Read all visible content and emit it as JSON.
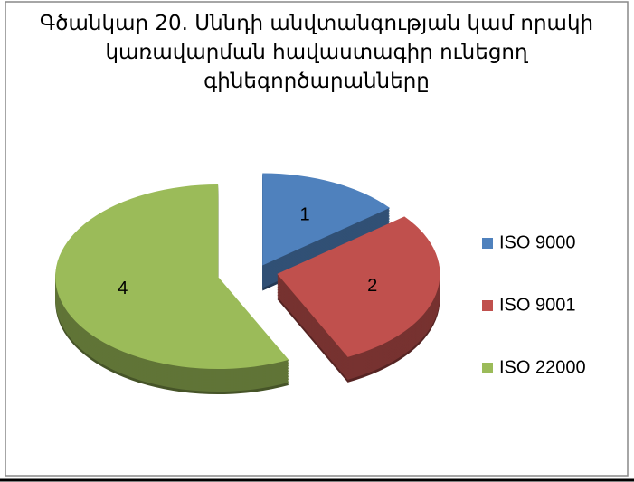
{
  "chart_data": {
    "type": "pie3d",
    "title": "Գծանկար 20. Սննդի անվտանգության կամ որակի կառավարման հավաստագիր ունեցող գինեգործարանները",
    "categories": [
      "ISO 9000",
      "ISO 9001",
      "ISO 22000"
    ],
    "values": [
      1,
      2,
      4
    ],
    "colors": [
      "#4f81bd",
      "#c0504d",
      "#9bbb59"
    ],
    "legend": "right"
  }
}
